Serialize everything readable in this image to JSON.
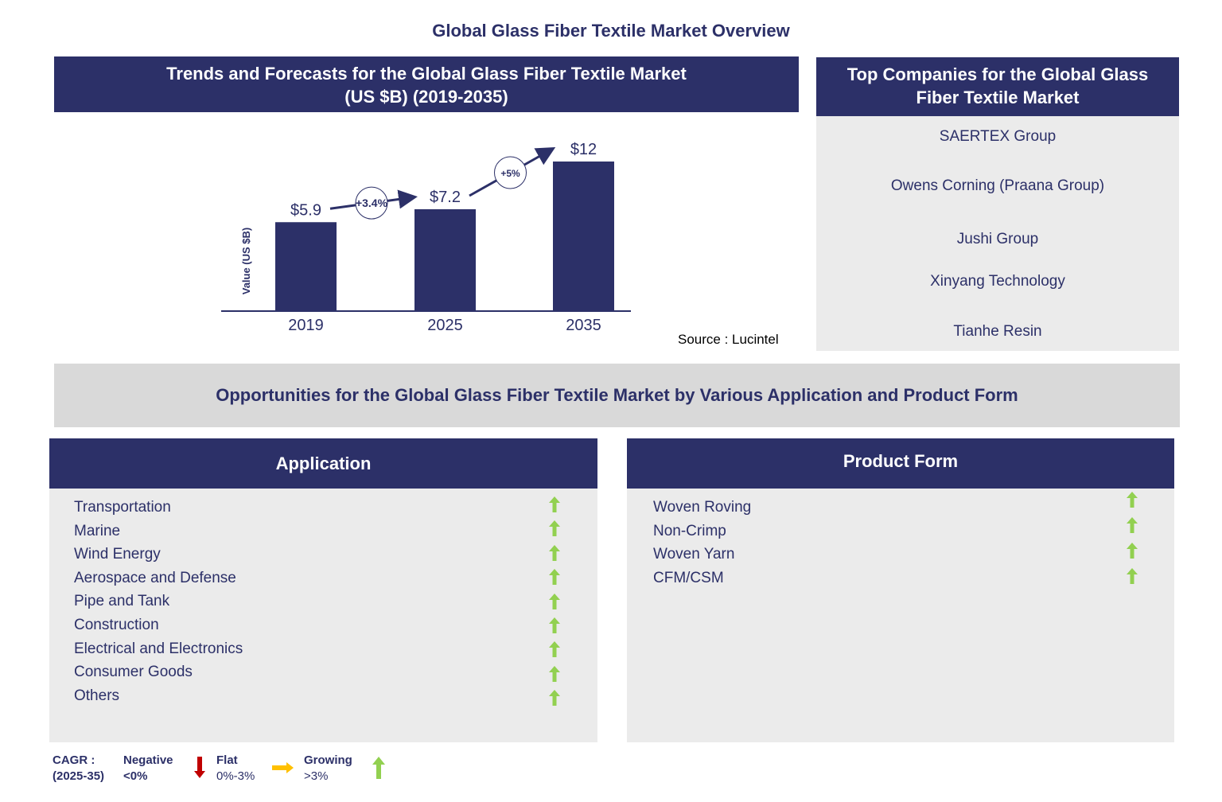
{
  "title": "Global Glass Fiber Textile Market Overview",
  "chart_header": [
    "Trends and Forecasts for the Global Glass Fiber Textile Market",
    "(US $B) (2019-2035)"
  ],
  "chart_data": {
    "type": "bar",
    "categories": [
      "2019",
      "2025",
      "2035"
    ],
    "values": [
      5.9,
      7.2,
      12
    ],
    "data_labels": [
      "$5.9",
      "$7.2",
      "$12"
    ],
    "ylabel": "Value (US $B)",
    "cagr_annotations": [
      {
        "from": "2019",
        "to": "2025",
        "label": "+3.4%"
      },
      {
        "from": "2025",
        "to": "2035",
        "label": "+5%"
      }
    ],
    "bar_color": "#2c3068"
  },
  "source": "Source : Lucintel",
  "companies": {
    "header": [
      "Top Companies for the Global Glass",
      "Fiber Textile Market"
    ],
    "items": [
      "SAERTEX Group",
      "Owens Corning (Praana Group)",
      "Jushi Group",
      "Xinyang Technology",
      "Tianhe Resin"
    ]
  },
  "opportunities_title": "Opportunities for the Global Glass Fiber Textile Market  by Various Application and Product Form",
  "application": {
    "header": "Application",
    "items": [
      "Transportation",
      "Marine",
      "Wind Energy",
      "Aerospace and Defense",
      "Pipe and Tank",
      "Construction",
      "Electrical and Electronics",
      "Consumer Goods",
      "Others"
    ],
    "trend": "growing"
  },
  "product_form": {
    "header": "Product Form",
    "items": [
      "Woven Roving",
      "Non-Crimp",
      "Woven Yarn",
      "CFM/CSM"
    ],
    "trend": "growing"
  },
  "legend": {
    "cagr": "CAGR  :",
    "period": "(2025-35)",
    "negative": "Negative",
    "negative_range": "<0%",
    "flat": "Flat",
    "flat_range": "0%-3%",
    "growing": "Growing",
    "growing_range": ">3%",
    "colors": {
      "negative": "#c00000",
      "flat": "#ffc000",
      "growing": "#92d050"
    }
  }
}
